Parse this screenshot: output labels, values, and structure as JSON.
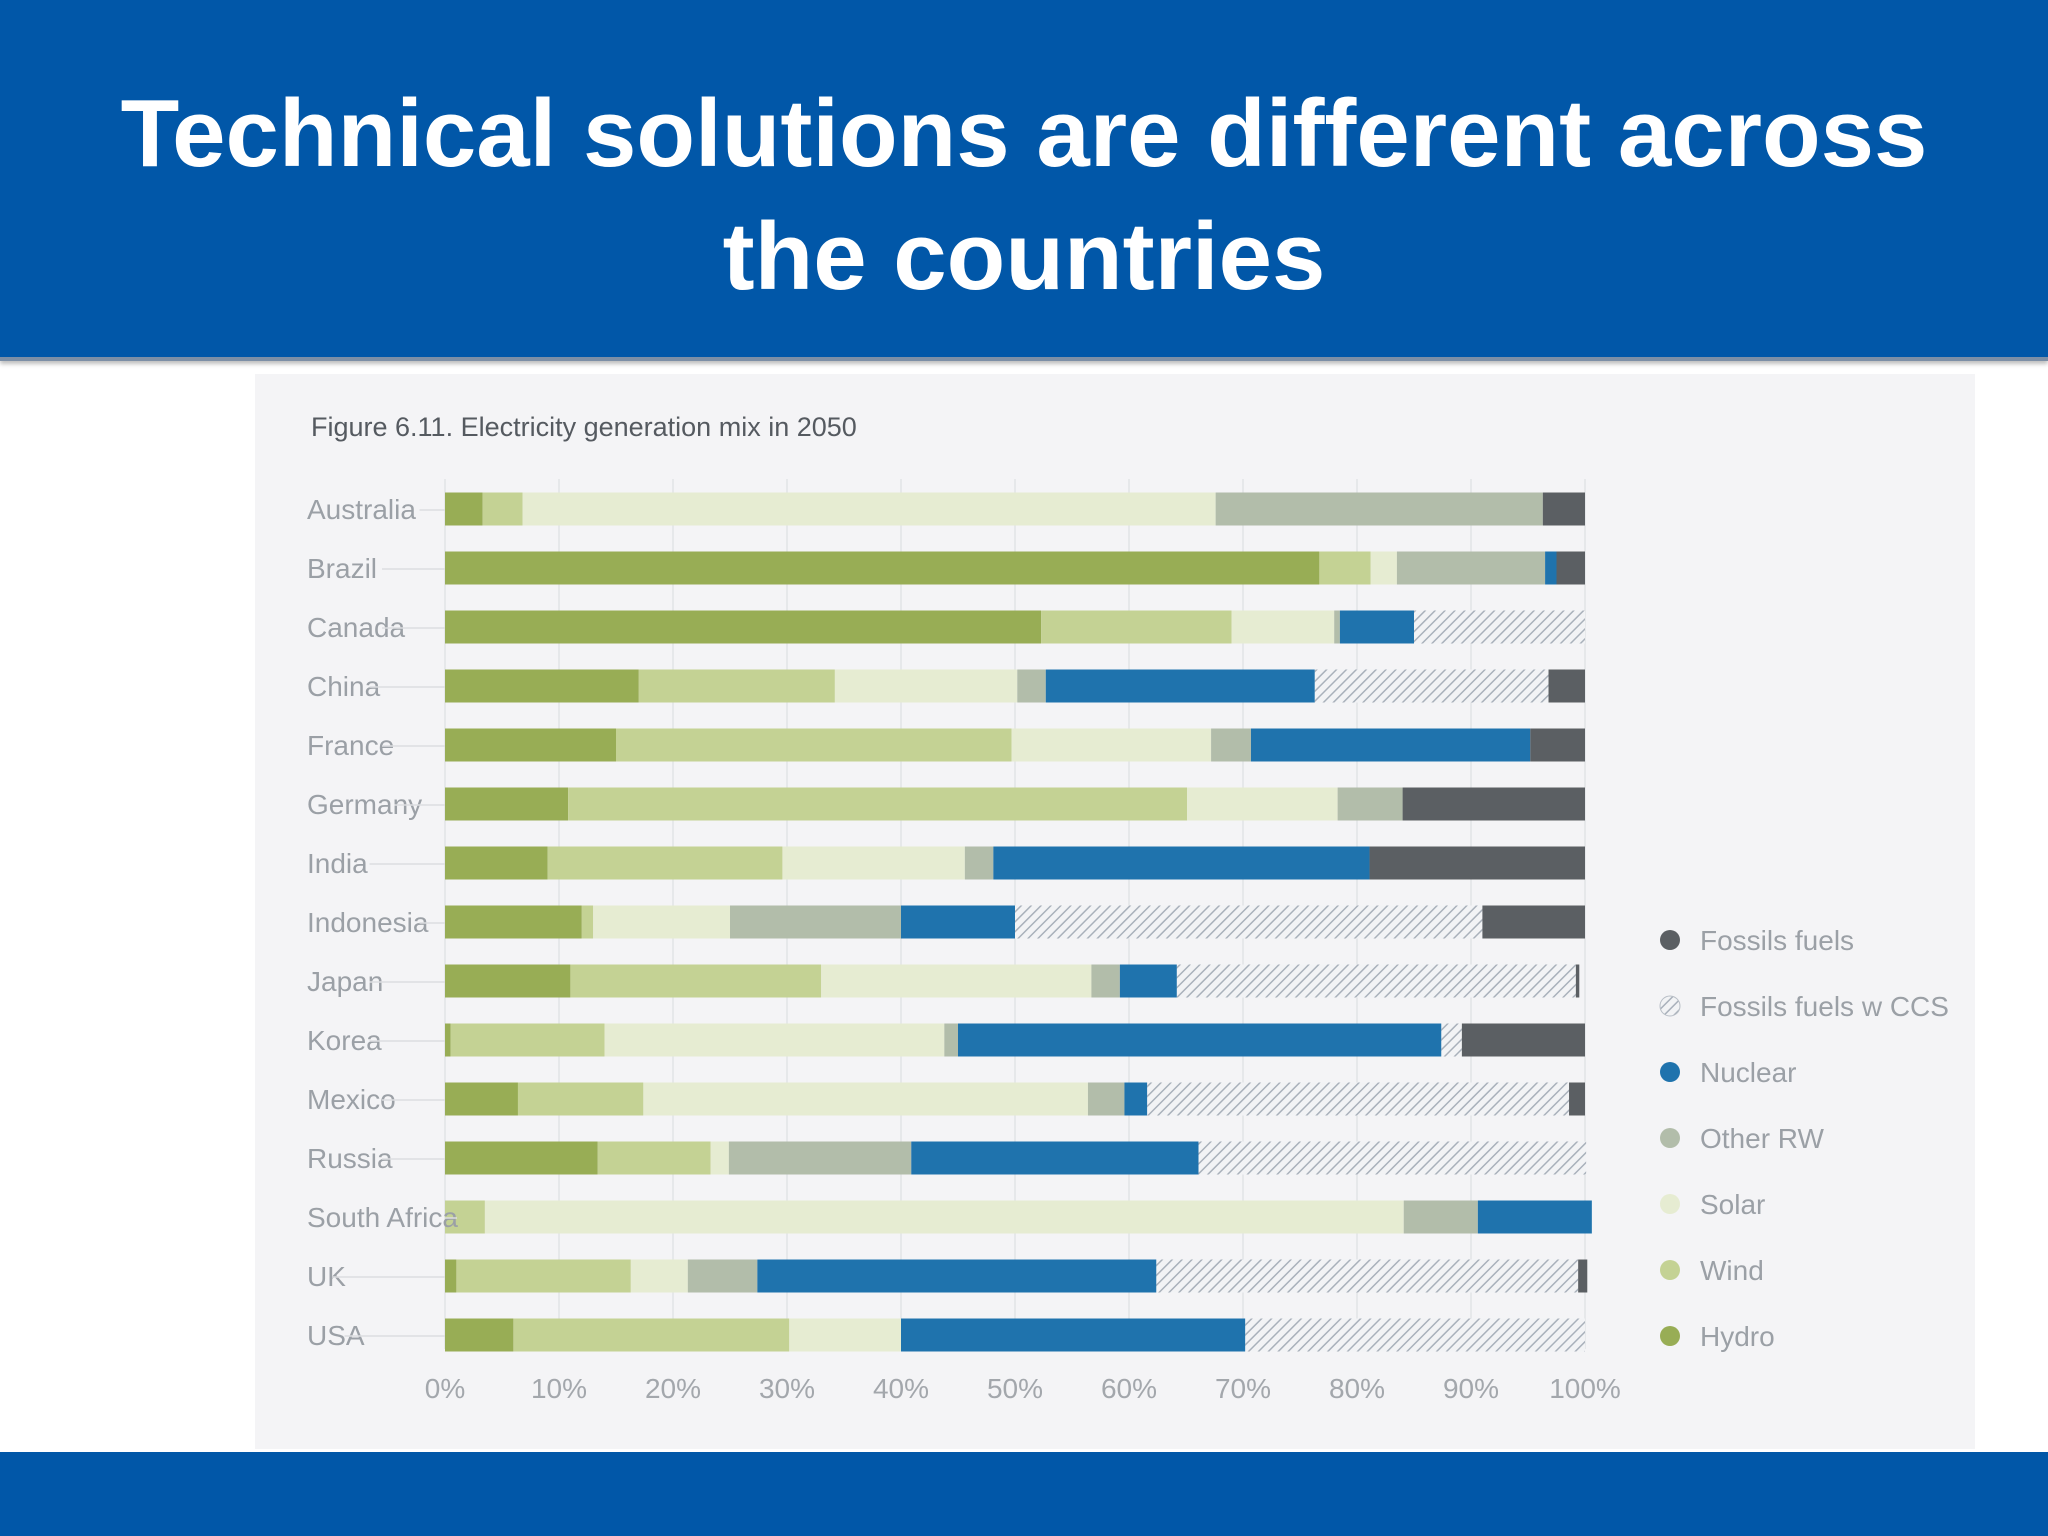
{
  "slide": {
    "title_line1": "Technical solutions are different across",
    "title_line2": "the countries",
    "header_color": "#0157a8"
  },
  "chart_data": {
    "type": "bar",
    "orientation": "horizontal",
    "stacked": true,
    "title": "Figure 6.11. Electricity generation mix in 2050",
    "xlabel": "",
    "ylabel": "",
    "xlim": [
      0,
      100
    ],
    "x_ticks": [
      "0%",
      "10%",
      "20%",
      "30%",
      "40%",
      "50%",
      "60%",
      "70%",
      "80%",
      "90%",
      "100%"
    ],
    "grid": true,
    "legend_position": "right",
    "categories": [
      "Australia",
      "Brazil",
      "Canada",
      "China",
      "France",
      "Germany",
      "India",
      "Indonesia",
      "Japan",
      "Korea",
      "Mexico",
      "Russia",
      "South Africa",
      "UK",
      "USA"
    ],
    "series": [
      {
        "name": "Hydro",
        "color": "#98ad55",
        "pattern": "solid",
        "values": [
          3.3,
          76.7,
          52.3,
          17.0,
          15.0,
          10.8,
          9.0,
          12.0,
          11.0,
          0.5,
          6.4,
          13.4,
          0.0,
          1.0,
          6.0
        ]
      },
      {
        "name": "Wind",
        "color": "#c4d294",
        "pattern": "solid",
        "values": [
          3.5,
          4.5,
          16.7,
          17.2,
          34.7,
          54.3,
          20.6,
          1.0,
          22.0,
          13.5,
          11.0,
          9.9,
          3.5,
          15.3,
          24.2
        ]
      },
      {
        "name": "Solar",
        "color": "#e6ecd2",
        "pattern": "solid",
        "values": [
          60.8,
          2.3,
          9.0,
          16.0,
          17.5,
          13.2,
          16.0,
          12.0,
          23.7,
          29.8,
          39.0,
          1.6,
          80.6,
          5.0,
          9.8
        ]
      },
      {
        "name": "Other RW",
        "color": "#b2bdaa",
        "pattern": "solid",
        "values": [
          28.7,
          13.0,
          0.5,
          2.5,
          3.5,
          5.7,
          2.5,
          15.0,
          2.5,
          1.2,
          3.2,
          16.0,
          6.5,
          6.1,
          0.0
        ]
      },
      {
        "name": "Nuclear",
        "color": "#1f73ad",
        "pattern": "solid",
        "values": [
          0.0,
          1.0,
          6.5,
          23.6,
          24.5,
          0.0,
          33.0,
          10.0,
          5.0,
          42.4,
          2.0,
          25.2,
          10.0,
          35.0,
          30.2
        ]
      },
      {
        "name": "Fossils fuels w CCS",
        "color": "#c6ccd3",
        "pattern": "hatch",
        "values": [
          0.0,
          0.0,
          15.0,
          20.5,
          0.0,
          0.0,
          0.0,
          41.0,
          35.0,
          1.8,
          37.0,
          34.0,
          0.0,
          37.0,
          29.8
        ]
      },
      {
        "name": "Fossils fuels",
        "color": "#5b5f63",
        "pattern": "solid",
        "values": [
          3.7,
          2.5,
          0.0,
          3.2,
          4.8,
          16.0,
          18.9,
          9.0,
          0.3,
          10.8,
          1.4,
          0.0,
          0.0,
          0.8,
          0.0
        ]
      }
    ],
    "legend_order": [
      "Fossils fuels",
      "Fossils fuels w CCS",
      "Nuclear",
      "Other RW",
      "Solar",
      "Wind",
      "Hydro"
    ]
  }
}
